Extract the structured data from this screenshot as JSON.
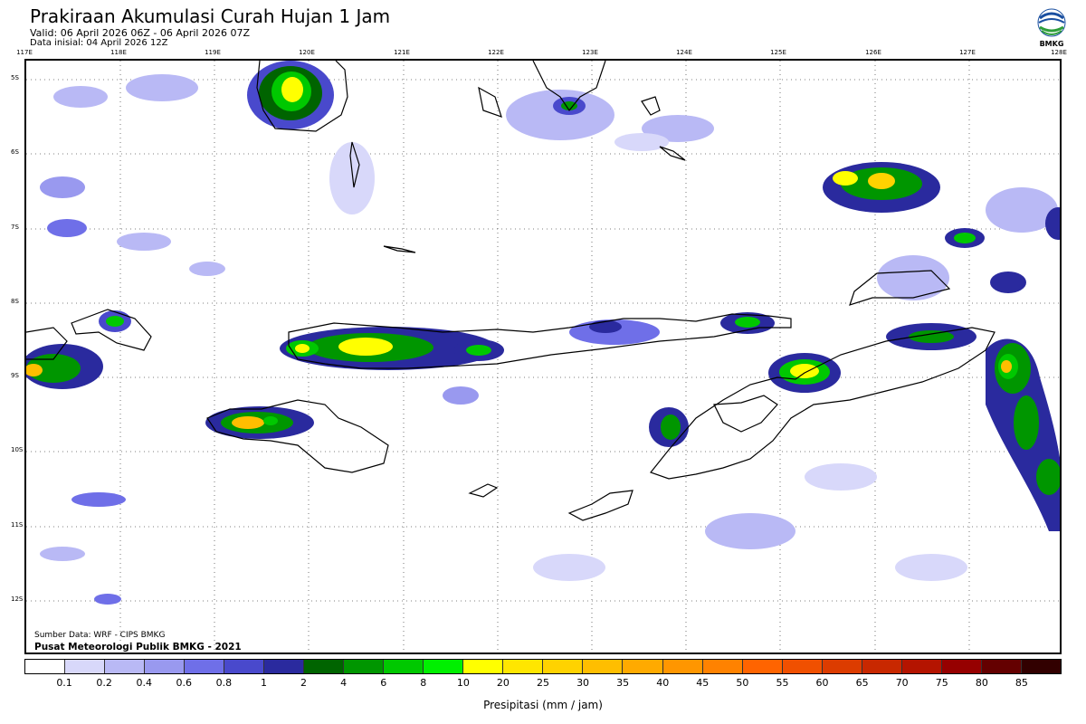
{
  "header": {
    "title": "Prakiraan Akumulasi Curah Hujan 1 Jam",
    "valid": "Valid: 06 April 2026 06Z - 06 April 2026 07Z",
    "initial": "Data inisial: 04 April 2026 12Z"
  },
  "logo": {
    "icon": "bmkg-logo-icon",
    "text": "BMKG"
  },
  "map": {
    "lon_labels": [
      "117E",
      "118E",
      "119E",
      "120E",
      "121E",
      "122E",
      "123E",
      "124E",
      "125E",
      "126E",
      "127E",
      "128E"
    ],
    "lat_labels": [
      "5S",
      "6S",
      "7S",
      "8S",
      "9S",
      "10S",
      "11S",
      "12S"
    ],
    "grid": "dotted"
  },
  "footer": {
    "source": "Sumber Data: WRF - CIPS BMKG",
    "center": "Pusat Meteorologi Publik BMKG - 2021"
  },
  "legend": {
    "ticks": [
      "0.1",
      "0.2",
      "0.4",
      "0.6",
      "0.8",
      "1",
      "2",
      "4",
      "6",
      "8",
      "10",
      "20",
      "25",
      "30",
      "35",
      "40",
      "45",
      "50",
      "55",
      "60",
      "65",
      "70",
      "75",
      "80",
      "85"
    ],
    "colors": [
      "#ffffff",
      "#d8d8fa",
      "#b9b9f5",
      "#9999ef",
      "#6f6fe8",
      "#4949cc",
      "#2a2a9e",
      "#006400",
      "#009600",
      "#00c800",
      "#00f000",
      "#ffff00",
      "#ffe600",
      "#ffd200",
      "#ffbe00",
      "#ffaa00",
      "#ff9600",
      "#ff8200",
      "#ff6400",
      "#f05000",
      "#dc3c00",
      "#c82800",
      "#b41400",
      "#960000",
      "#640000",
      "#320000"
    ],
    "xlabel": "Presipitasi (mm / jam)"
  }
}
